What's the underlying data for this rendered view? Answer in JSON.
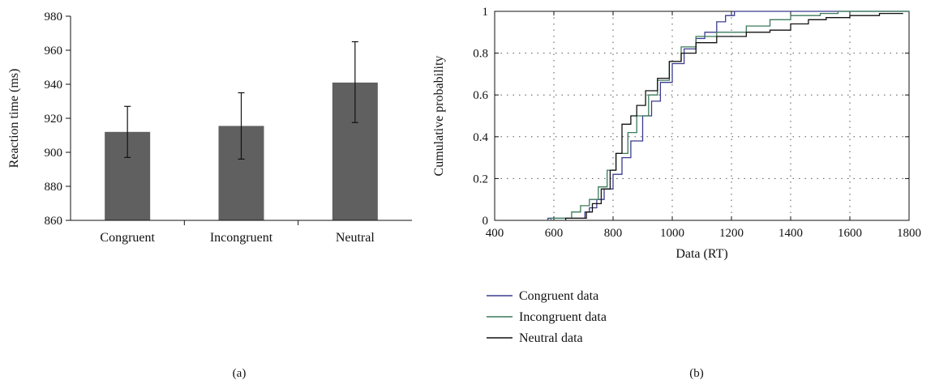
{
  "chart_data": [
    {
      "type": "bar",
      "panel_label": "(a)",
      "categories": [
        "Congruent",
        "Incongruent",
        "Neutral"
      ],
      "values": [
        912,
        915.5,
        941
      ],
      "error_bars": [
        {
          "low": 897,
          "high": 927
        },
        {
          "low": 896,
          "high": 935
        },
        {
          "low": 917.5,
          "high": 965
        }
      ],
      "ylabel": "Reaction time (ms)",
      "ylim": [
        860,
        980
      ],
      "yticks": [
        860,
        880,
        900,
        920,
        940,
        960,
        980
      ],
      "bar_color": "#606060",
      "grid": false
    },
    {
      "type": "line",
      "panel_label": "(b)",
      "xlabel": "Data (RT)",
      "ylabel": "Cumulative probability",
      "xlim": [
        400,
        1800
      ],
      "ylim": [
        0,
        1
      ],
      "xticks": [
        400,
        600,
        800,
        1000,
        1200,
        1400,
        1600,
        1800
      ],
      "yticks": [
        0,
        0.2,
        0.4,
        0.6,
        0.8,
        1
      ],
      "grid": true,
      "legend_position": "bottom",
      "series": [
        {
          "name": "Congruent data",
          "color": "#3b3b8f",
          "points": [
            [
              580,
              0
            ],
            [
              580,
              0.01
            ],
            [
              680,
              0.01
            ],
            [
              705,
              0.04
            ],
            [
              720,
              0.06
            ],
            [
              745,
              0.1
            ],
            [
              770,
              0.15
            ],
            [
              800,
              0.22
            ],
            [
              830,
              0.3
            ],
            [
              860,
              0.38
            ],
            [
              900,
              0.5
            ],
            [
              930,
              0.57
            ],
            [
              960,
              0.66
            ],
            [
              1000,
              0.75
            ],
            [
              1040,
              0.82
            ],
            [
              1080,
              0.87
            ],
            [
              1110,
              0.9
            ],
            [
              1150,
              0.95
            ],
            [
              1180,
              0.98
            ],
            [
              1210,
              1.0
            ],
            [
              1800,
              1.0
            ]
          ]
        },
        {
          "name": "Incongruent data",
          "color": "#3a7a5a",
          "points": [
            [
              590,
              0
            ],
            [
              590,
              0.01
            ],
            [
              630,
              0.01
            ],
            [
              660,
              0.04
            ],
            [
              690,
              0.07
            ],
            [
              720,
              0.1
            ],
            [
              750,
              0.16
            ],
            [
              780,
              0.24
            ],
            [
              810,
              0.32
            ],
            [
              850,
              0.42
            ],
            [
              880,
              0.5
            ],
            [
              920,
              0.6
            ],
            [
              950,
              0.67
            ],
            [
              990,
              0.76
            ],
            [
              1030,
              0.83
            ],
            [
              1080,
              0.88
            ],
            [
              1150,
              0.9
            ],
            [
              1250,
              0.93
            ],
            [
              1330,
              0.96
            ],
            [
              1400,
              0.98
            ],
            [
              1500,
              0.99
            ],
            [
              1560,
              1.0
            ],
            [
              1800,
              1.0
            ]
          ]
        },
        {
          "name": "Neutral data",
          "color": "#111111",
          "points": [
            [
              640,
              0
            ],
            [
              640,
              0.01
            ],
            [
              690,
              0.01
            ],
            [
              710,
              0.04
            ],
            [
              730,
              0.08
            ],
            [
              760,
              0.15
            ],
            [
              790,
              0.24
            ],
            [
              810,
              0.32
            ],
            [
              830,
              0.46
            ],
            [
              860,
              0.5
            ],
            [
              880,
              0.55
            ],
            [
              910,
              0.62
            ],
            [
              950,
              0.68
            ],
            [
              990,
              0.76
            ],
            [
              1030,
              0.8
            ],
            [
              1080,
              0.85
            ],
            [
              1150,
              0.88
            ],
            [
              1250,
              0.9
            ],
            [
              1330,
              0.91
            ],
            [
              1400,
              0.94
            ],
            [
              1460,
              0.96
            ],
            [
              1520,
              0.97
            ],
            [
              1600,
              0.98
            ],
            [
              1700,
              0.99
            ],
            [
              1780,
              0.99
            ]
          ]
        }
      ]
    }
  ]
}
